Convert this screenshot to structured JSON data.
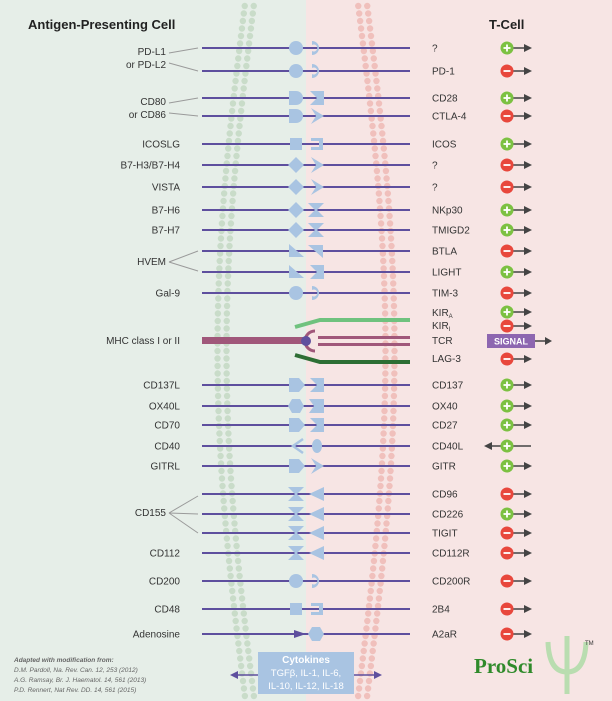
{
  "header": {
    "left_title": "Antigen-Presenting Cell",
    "right_title": "T-Cell"
  },
  "colors": {
    "apc_bg": "#e6eee8",
    "tcell_bg": "#f7e5e4",
    "line": "#5e4f9e",
    "shape": "#a9c4e2",
    "plus": "#7cc142",
    "minus": "#e8473c",
    "arrow": "#444444",
    "mhc": "#a0577a",
    "tcr_green": "#6fc27e",
    "lag3_green": "#2d6e34",
    "signal": "#8d66b0"
  },
  "rows": [
    {
      "left": "",
      "right": "?",
      "effect": "plus",
      "ls": "circle",
      "rs": "cup"
    },
    {
      "left": "",
      "right": "PD-1",
      "effect": "minus",
      "ls": "circle",
      "rs": "cup"
    },
    {
      "left": "",
      "right": "CD28",
      "effect": "plus",
      "ls": "half",
      "rs": "notch"
    },
    {
      "left": "",
      "right": "CTLA-4",
      "effect": "minus",
      "ls": "half",
      "rs": "chevron"
    },
    {
      "left": "ICOSLG",
      "right": "ICOS",
      "effect": "plus",
      "ls": "square",
      "rs": "bracket"
    },
    {
      "left": "B7-H3/B7-H4",
      "right": "?",
      "effect": "minus",
      "ls": "diamond",
      "rs": "chevron"
    },
    {
      "left": "VISTA",
      "right": "?",
      "effect": "minus",
      "ls": "diamond",
      "rs": "chevron"
    },
    {
      "left": "B7-H6",
      "right": "NKp30",
      "effect": "plus",
      "ls": "diamond",
      "rs": "bowtie"
    },
    {
      "left": "B7-H7",
      "right": "TMIGD2",
      "effect": "plus",
      "ls": "diamond",
      "rs": "bowtie"
    },
    {
      "left": "",
      "right": "BTLA",
      "effect": "minus",
      "ls": "wedge",
      "rs": "wedge"
    },
    {
      "left": "",
      "right": "LIGHT",
      "effect": "plus",
      "ls": "wedge",
      "rs": "notch"
    },
    {
      "left": "Gal-9",
      "right": "TIM-3",
      "effect": "minus",
      "ls": "circle",
      "rs": "cup"
    },
    {
      "left": "CD137L",
      "right": "CD137",
      "effect": "plus",
      "ls": "pentagon",
      "rs": "notch"
    },
    {
      "left": "OX40L",
      "right": "OX40",
      "effect": "plus",
      "ls": "hexagon",
      "rs": "hexnotch"
    },
    {
      "left": "CD70",
      "right": "CD27",
      "effect": "plus",
      "ls": "pentagon",
      "rs": "notch"
    },
    {
      "left": "CD40",
      "right": "CD40L",
      "effect": "plus-rev",
      "ls": "vcup",
      "rs": "oval"
    },
    {
      "left": "GITRL",
      "right": "GITR",
      "effect": "plus",
      "ls": "pentagon",
      "rs": "chevron"
    },
    {
      "left": "",
      "right": "CD96",
      "effect": "minus",
      "ls": "bowtie",
      "rs": "tri"
    },
    {
      "left": "",
      "right": "CD226",
      "effect": "plus",
      "ls": "bowtie",
      "rs": "tri"
    },
    {
      "left": "",
      "right": "TIGIT",
      "effect": "minus",
      "ls": "bowtie",
      "rs": "tri"
    },
    {
      "left": "CD112",
      "right": "CD112R",
      "effect": "minus",
      "ls": "bowtie",
      "rs": "tri"
    },
    {
      "left": "CD200",
      "right": "CD200R",
      "effect": "minus",
      "ls": "circle",
      "rs": "cup"
    },
    {
      "left": "CD48",
      "right": "2B4",
      "effect": "minus",
      "ls": "square",
      "rs": "bracket"
    },
    {
      "left": "Adenosine",
      "right": "A2aR",
      "effect": "minus",
      "ls": "arrow",
      "rs": "hexagon"
    }
  ],
  "groups": [
    {
      "label1": "PD-L1",
      "label2": "or PD-L2"
    },
    {
      "label1": "CD80",
      "label2": "or CD86"
    },
    {
      "label1": "HVEM",
      "label2": ""
    },
    {
      "label1": "CD155",
      "label2": ""
    }
  ],
  "kir": {
    "label1": "KIR",
    "sub1": "A",
    "label2": "KIR",
    "sub2": "I"
  },
  "mhc": {
    "left": "MHC class I or II",
    "tcr": "TCR",
    "lag3": "LAG-3",
    "signal": "SIGNAL"
  },
  "cytokines": {
    "title": "Cytokines",
    "line1": "TGFβ, IL-1, IL-6,",
    "line2": "IL-10, IL-12, IL-18"
  },
  "citation": {
    "head": "Adapted with modification from:",
    "ref1": "D.M. Pardoll, Na. Rev. Can. 12, 253 (2012)",
    "ref2": "A.G. Ramsay, Br. J. Haematol. 14, 561 (2013)",
    "ref3": "P.D. Rennert, Nat Rev. DD. 14, 561 (2015)"
  },
  "brand": {
    "name": "ProSci",
    "tm": "TM"
  }
}
